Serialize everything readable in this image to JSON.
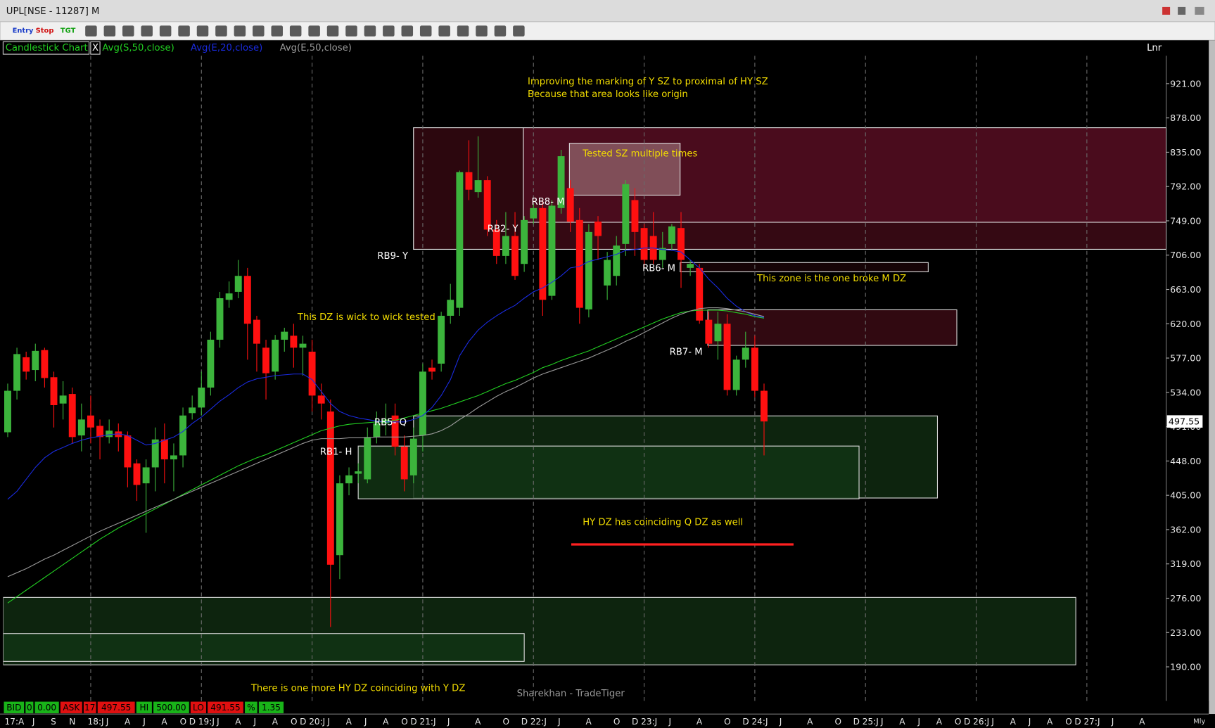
{
  "window": {
    "title": "UPL[NSE - 11287] M"
  },
  "toolbar": {
    "entry": "Entry",
    "stop": "Stop",
    "tgt": "TGT"
  },
  "legend_bar": {
    "chart_type": "Candlestick Chart",
    "close": "X",
    "scale": "Lnr"
  },
  "chart_data": {
    "type": "candlestick",
    "x": [
      0,
      1,
      2,
      3,
      4,
      5,
      6,
      7,
      8,
      9,
      10,
      11,
      12,
      13,
      14,
      15,
      16,
      17,
      18,
      19,
      20,
      21,
      22,
      23,
      24,
      25,
      26,
      27,
      28,
      29,
      30,
      31,
      32,
      33,
      34,
      35,
      36,
      37,
      38,
      39,
      40,
      41,
      42,
      43,
      44,
      45,
      46,
      47,
      48,
      49,
      50,
      51,
      52,
      53,
      54,
      55,
      56,
      57,
      58,
      59,
      60,
      61,
      62,
      63,
      64,
      65,
      66,
      67,
      68,
      69,
      70,
      71,
      72,
      73,
      74,
      75,
      76,
      77,
      78,
      79,
      80,
      81,
      82
    ],
    "open": [
      484,
      536,
      578,
      562,
      587,
      553,
      520,
      532,
      480,
      505,
      492,
      478,
      485,
      480,
      445,
      420,
      440,
      475,
      450,
      455,
      508,
      515,
      540,
      600,
      650,
      660,
      680,
      625,
      590,
      560,
      600,
      605,
      590,
      585,
      530,
      510,
      330,
      420,
      432,
      425,
      478,
      495,
      505,
      466,
      430,
      480,
      565,
      570,
      630,
      640,
      810,
      785,
      800,
      738,
      705,
      730,
      695,
      752,
      765,
      655,
      765,
      790,
      750,
      638,
      748,
      668,
      680,
      720,
      775,
      740,
      730,
      700,
      720,
      740,
      690,
      690,
      625,
      598,
      620,
      537,
      575,
      590,
      536
    ],
    "high": [
      545,
      590,
      585,
      595,
      590,
      560,
      548,
      540,
      520,
      530,
      500,
      500,
      495,
      485,
      450,
      450,
      490,
      495,
      470,
      515,
      530,
      560,
      610,
      660,
      673,
      700,
      690,
      630,
      600,
      606,
      615,
      620,
      605,
      600,
      545,
      525,
      430,
      440,
      445,
      490,
      510,
      520,
      520,
      480,
      490,
      570,
      575,
      635,
      670,
      812,
      850,
      855,
      805,
      750,
      760,
      760,
      755,
      770,
      775,
      775,
      838,
      800,
      765,
      745,
      755,
      710,
      730,
      800,
      790,
      745,
      760,
      735,
      745,
      760,
      700,
      695,
      635,
      635,
      632,
      580,
      610,
      605,
      545
    ],
    "low": [
      478,
      525,
      550,
      548,
      540,
      490,
      500,
      470,
      460,
      470,
      450,
      470,
      460,
      415,
      398,
      358,
      410,
      420,
      410,
      440,
      500,
      505,
      530,
      590,
      640,
      652,
      575,
      560,
      525,
      550,
      585,
      565,
      555,
      510,
      500,
      240,
      300,
      405,
      420,
      420,
      470,
      480,
      455,
      410,
      420,
      460,
      550,
      560,
      620,
      630,
      775,
      778,
      730,
      695,
      695,
      675,
      685,
      745,
      630,
      650,
      758,
      735,
      620,
      628,
      700,
      650,
      668,
      705,
      705,
      690,
      695,
      690,
      712,
      665,
      680,
      620,
      590,
      575,
      530,
      530,
      565,
      528,
      455
    ],
    "close": [
      536,
      582,
      560,
      586,
      552,
      518,
      530,
      478,
      500,
      490,
      478,
      486,
      478,
      440,
      418,
      440,
      475,
      450,
      455,
      505,
      515,
      540,
      600,
      652,
      658,
      680,
      620,
      595,
      558,
      600,
      610,
      590,
      595,
      530,
      520,
      318,
      420,
      430,
      435,
      478,
      495,
      500,
      466,
      425,
      476,
      560,
      560,
      630,
      650,
      810,
      788,
      800,
      738,
      705,
      730,
      680,
      750,
      765,
      650,
      768,
      830,
      748,
      640,
      735,
      730,
      700,
      718,
      795,
      735,
      700,
      700,
      715,
      742,
      700,
      695,
      624,
      595,
      620,
      537,
      575,
      590,
      536,
      497.55
    ],
    "up_color": "#3cb43c",
    "down_color": "#ff1010",
    "series": [
      {
        "name": "Avg(S,50,close)",
        "color": "#22d022",
        "values": [
          270,
          278,
          286,
          294,
          302,
          310,
          318,
          326,
          334,
          342,
          350,
          357,
          364,
          370,
          376,
          382,
          388,
          394,
          400,
          406,
          412,
          418,
          424,
          430,
          436,
          442,
          447,
          452,
          456,
          461,
          466,
          471,
          476,
          481,
          486,
          489,
          492,
          494,
          495,
          496,
          497,
          497,
          499,
          502,
          505,
          508,
          511,
          514,
          518,
          522,
          526,
          530,
          535,
          540,
          545,
          549,
          554,
          559,
          565,
          569,
          574,
          578,
          582,
          586,
          591,
          596,
          601,
          606,
          611,
          616,
          621,
          626,
          630,
          634,
          636,
          637,
          637,
          637,
          636,
          634,
          632,
          629,
          627
        ]
      },
      {
        "name": "Avg(E,20,close)",
        "color": "#1a2be0",
        "values": [
          400,
          410,
          425,
          440,
          452,
          460,
          465,
          470,
          474,
          477,
          479,
          481,
          482,
          480,
          474,
          468,
          470,
          474,
          478,
          485,
          495,
          503,
          513,
          523,
          531,
          540,
          547,
          551,
          553,
          555,
          556,
          557,
          557,
          550,
          535,
          520,
          510,
          505,
          502,
          500,
          498,
          497,
          497,
          497,
          500,
          505,
          515,
          530,
          550,
          580,
          598,
          612,
          622,
          630,
          637,
          643,
          652,
          660,
          665,
          672,
          680,
          690,
          692,
          698,
          701,
          704,
          707,
          712,
          713,
          715,
          715,
          713,
          712,
          710,
          700,
          690,
          676,
          665,
          652,
          642,
          635,
          630,
          628
        ]
      },
      {
        "name": "Avg(E,50,close)",
        "color": "#9a9a9a",
        "values": [
          303,
          308,
          313,
          319,
          325,
          330,
          336,
          342,
          348,
          354,
          360,
          365,
          370,
          375,
          380,
          385,
          390,
          395,
          400,
          405,
          410,
          415,
          420,
          425,
          430,
          435,
          440,
          445,
          450,
          455,
          460,
          465,
          470,
          474,
          476,
          476,
          476,
          477,
          477,
          477,
          478,
          478,
          478,
          478,
          479,
          480,
          482,
          486,
          492,
          500,
          507,
          515,
          522,
          529,
          535,
          540,
          546,
          552,
          557,
          561,
          565,
          569,
          573,
          577,
          582,
          587,
          592,
          598,
          603,
          609,
          615,
          621,
          627,
          632,
          636,
          639,
          640,
          640,
          639,
          637,
          635,
          632,
          629
        ]
      }
    ],
    "xlim": [
      -0.5,
      125.6
    ],
    "ylim": [
      147.3,
      955.9
    ],
    "yticks": [
      {
        "value": 921,
        "label": "921.00"
      },
      {
        "value": 878,
        "label": "878.00"
      },
      {
        "value": 835,
        "label": "835.00"
      },
      {
        "value": 792,
        "label": "792.00"
      },
      {
        "value": 749,
        "label": "749.00"
      },
      {
        "value": 706,
        "label": "706.00"
      },
      {
        "value": 663,
        "label": "663.00"
      },
      {
        "value": 620,
        "label": "620.00"
      },
      {
        "value": 577,
        "label": "577.00"
      },
      {
        "value": 534,
        "label": "534.00"
      },
      {
        "value": 491,
        "label": "491.00"
      },
      {
        "value": 448,
        "label": "448.00"
      },
      {
        "value": 405,
        "label": "405.00"
      },
      {
        "value": 362,
        "label": "362.00"
      },
      {
        "value": 319,
        "label": "319.00"
      },
      {
        "value": 276,
        "label": "276.00"
      },
      {
        "value": 233,
        "label": "233.00"
      },
      {
        "value": 190,
        "label": "190.00"
      }
    ],
    "xticks": [
      {
        "value": 0,
        "label": "17:A"
      },
      {
        "value": 3,
        "label": "J"
      },
      {
        "value": 5,
        "label": "S"
      },
      {
        "value": 7,
        "label": "N"
      },
      {
        "value": 9,
        "label": "18:J"
      },
      {
        "value": 11,
        "label": "J"
      },
      {
        "value": 13,
        "label": "A"
      },
      {
        "value": 15,
        "label": "J"
      },
      {
        "value": 17,
        "label": "A"
      },
      {
        "value": 19,
        "label": "O"
      },
      {
        "value": 20,
        "label": "D"
      },
      {
        "value": 21,
        "label": "19:J"
      },
      {
        "value": 23,
        "label": "J"
      },
      {
        "value": 25,
        "label": "A"
      },
      {
        "value": 27,
        "label": "J"
      },
      {
        "value": 29,
        "label": "A"
      },
      {
        "value": 31,
        "label": "O"
      },
      {
        "value": 32,
        "label": "D"
      },
      {
        "value": 33,
        "label": "20:J"
      },
      {
        "value": 35,
        "label": "J"
      },
      {
        "value": 37,
        "label": "A"
      },
      {
        "value": 39,
        "label": "J"
      },
      {
        "value": 41,
        "label": "A"
      },
      {
        "value": 43,
        "label": "O"
      },
      {
        "value": 44,
        "label": "D"
      },
      {
        "value": 45,
        "label": "21:J"
      },
      {
        "value": 48,
        "label": "J"
      },
      {
        "value": 51,
        "label": "A"
      },
      {
        "value": 54,
        "label": "O"
      },
      {
        "value": 56,
        "label": "D"
      },
      {
        "value": 57,
        "label": "22:J"
      },
      {
        "value": 60,
        "label": "J"
      },
      {
        "value": 63,
        "label": "A"
      },
      {
        "value": 66,
        "label": "O"
      },
      {
        "value": 68,
        "label": "D"
      },
      {
        "value": 69,
        "label": "23:J"
      },
      {
        "value": 72,
        "label": "J"
      },
      {
        "value": 75,
        "label": "A"
      },
      {
        "value": 78,
        "label": "O"
      },
      {
        "value": 80,
        "label": "D"
      },
      {
        "value": 81,
        "label": "24:J"
      },
      {
        "value": 84,
        "label": "J"
      },
      {
        "value": 87,
        "label": "A"
      },
      {
        "value": 90,
        "label": "O"
      },
      {
        "value": 92,
        "label": "D"
      },
      {
        "value": 93,
        "label": "25:J"
      },
      {
        "value": 95,
        "label": "J"
      },
      {
        "value": 97,
        "label": "A"
      },
      {
        "value": 99,
        "label": "J"
      },
      {
        "value": 101,
        "label": "A"
      },
      {
        "value": 103,
        "label": "O"
      },
      {
        "value": 104,
        "label": "D"
      },
      {
        "value": 105,
        "label": "26:J"
      },
      {
        "value": 107,
        "label": "J"
      },
      {
        "value": 109,
        "label": "A"
      },
      {
        "value": 111,
        "label": "J"
      },
      {
        "value": 113,
        "label": "A"
      },
      {
        "value": 115,
        "label": "O"
      },
      {
        "value": 116,
        "label": "D"
      },
      {
        "value": 117,
        "label": "27:J"
      },
      {
        "value": 120,
        "label": "J"
      },
      {
        "value": 123,
        "label": "A"
      }
    ],
    "last_price": {
      "value": 497.55,
      "label": "497.55"
    },
    "zones": [
      {
        "x": [
          44,
          125.6
        ],
        "y": [
          713.3,
          865.7
        ],
        "fill": "#3e0a16",
        "stroke": "#dddddd"
      },
      {
        "x": [
          55.9,
          125.6
        ],
        "y": [
          747.2,
          865.7
        ],
        "fill": "#4e0d20",
        "stroke": "#dddddd"
      },
      {
        "x": [
          44,
          55.9
        ],
        "y": [
          713.3,
          865.7
        ],
        "fill": "#2a070e",
        "stroke": "#dddddd"
      },
      {
        "x": [
          60.9,
          72.9
        ],
        "y": [
          781.2,
          846.2
        ],
        "fill": "#8a5a63",
        "stroke": "#dddddd"
      },
      {
        "x": [
          72.9,
          99.8
        ],
        "y": [
          685.1,
          696.7
        ],
        "fill": "#1a0508",
        "stroke": "#dddddd"
      },
      {
        "x": [
          75.9,
          102.9
        ],
        "y": [
          592.9,
          637.5
        ],
        "fill": "#3a0a14",
        "stroke": "#dddddd"
      },
      {
        "x": [
          44,
          100.8
        ],
        "y": [
          401.6,
          504.5
        ],
        "fill": "#0f2a10",
        "stroke": "#dddddd"
      },
      {
        "x": [
          38,
          92.3
        ],
        "y": [
          400.6,
          466.7
        ],
        "fill": "#123414",
        "stroke": "#dddddd"
      },
      {
        "x": [
          -0.5,
          115.8
        ],
        "y": [
          192.5,
          277
        ],
        "fill": "#0f2a10",
        "stroke": "#dddddd"
      },
      {
        "x": [
          -0.5,
          56
        ],
        "y": [
          196.8,
          231.7
        ],
        "fill": "#123414",
        "stroke": "#dddddd"
      }
    ],
    "lines": [
      {
        "x": [
          61.1,
          85.2
        ],
        "y": 343.4,
        "color": "#ff2020"
      }
    ],
    "annotations": [
      {
        "text": "Improving the marking of Y SZ to proximal of HY SZ",
        "color": "#f2dc00"
      },
      {
        "text": "Because that area looks like origin",
        "color": "#f2dc00"
      },
      {
        "text": "Tested SZ multiple times",
        "color": "#f2dc00"
      },
      {
        "text": "This zone is the one broke M DZ",
        "color": "#f2dc00"
      },
      {
        "text": "This DZ is wick to wick tested",
        "color": "#f2dc00"
      },
      {
        "text": "HY DZ has coinciding Q DZ as well",
        "color": "#f2dc00"
      },
      {
        "text": "There is one more HY DZ coinciding with Y DZ",
        "color": "#f2dc00"
      },
      {
        "text": "RB9- Y",
        "color": "#ffffff"
      },
      {
        "text": "RB2- Y",
        "color": "#ffffff"
      },
      {
        "text": "RB8- M",
        "color": "#ffffff"
      },
      {
        "text": "RB6- M",
        "color": "#ffffff"
      },
      {
        "text": "RB7- M",
        "color": "#ffffff"
      },
      {
        "text": "RB5- Q",
        "color": "#ffffff"
      },
      {
        "text": "RB1- H",
        "color": "#ffffff"
      }
    ],
    "watermark": "Sharekhan - TradeTiger"
  },
  "status_bar": [
    {
      "text": "BID",
      "color": "#19b419"
    },
    {
      "text": "0",
      "color": "#19b419"
    },
    {
      "text": "0.00",
      "color": "#19b419"
    },
    {
      "text": "ASK",
      "color": "#e01010"
    },
    {
      "text": "17",
      "color": "#e01010"
    },
    {
      "text": "497.55",
      "color": "#e01010"
    },
    {
      "text": "HI",
      "color": "#19b419"
    },
    {
      "text": "500.00",
      "color": "#19b419"
    },
    {
      "text": "LO",
      "color": "#e01010"
    },
    {
      "text": "491.55",
      "color": "#e01010"
    },
    {
      "text": "%",
      "color": "#19b419"
    },
    {
      "text": "1.35",
      "color": "#19b419"
    }
  ],
  "period": "Mly"
}
